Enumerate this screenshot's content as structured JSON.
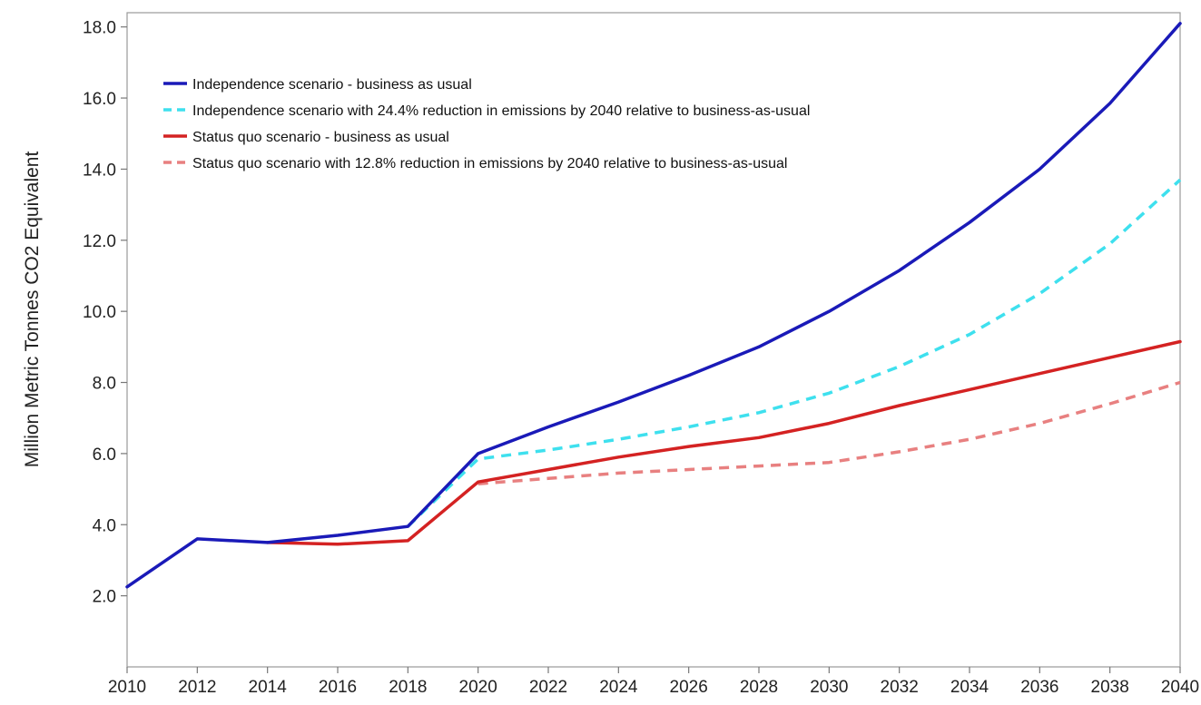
{
  "chart_data": {
    "type": "line",
    "title": "",
    "xlabel": "",
    "ylabel": "Million Metric Tonnes CO2 Equivalent",
    "xlim": [
      2010,
      2040
    ],
    "ylim": [
      0,
      18.4
    ],
    "x_ticks": [
      "2010",
      "2012",
      "2014",
      "2016",
      "2018",
      "2020",
      "2022",
      "2024",
      "2026",
      "2028",
      "2030",
      "2032",
      "2034",
      "2036",
      "2038",
      "2040"
    ],
    "y_ticks": [
      "2.0",
      "4.0",
      "6.0",
      "8.0",
      "10.0",
      "12.0",
      "14.0",
      "16.0",
      "18.0"
    ],
    "grid": false,
    "legend_position": "top-left",
    "series": [
      {
        "name": "Independence scenario - business as usual",
        "color": "#1a1ab8",
        "dashed": false,
        "x": [
          2010,
          2012,
          2014,
          2016,
          2018,
          2020,
          2022,
          2024,
          2026,
          2028,
          2030,
          2032,
          2034,
          2036,
          2038,
          2040
        ],
        "y": [
          2.25,
          3.6,
          3.5,
          3.7,
          3.95,
          6.0,
          6.75,
          7.45,
          8.2,
          9.0,
          10.0,
          11.15,
          12.5,
          14.0,
          15.85,
          18.1
        ]
      },
      {
        "name": "Independence scenario with 24.4% reduction in emissions by 2040 relative to business-as-usual",
        "color": "#3ee0ee",
        "dashed": true,
        "x": [
          2018,
          2020,
          2022,
          2024,
          2026,
          2028,
          2030,
          2032,
          2034,
          2036,
          2038,
          2040
        ],
        "y": [
          3.95,
          5.85,
          6.1,
          6.4,
          6.75,
          7.15,
          7.7,
          8.45,
          9.35,
          10.5,
          11.9,
          13.7
        ]
      },
      {
        "name": "Status quo scenario - business as usual",
        "color": "#d42222",
        "dashed": false,
        "x": [
          2014,
          2016,
          2018,
          2020,
          2022,
          2024,
          2026,
          2028,
          2030,
          2032,
          2034,
          2036,
          2038,
          2040
        ],
        "y": [
          3.5,
          3.45,
          3.55,
          5.2,
          5.55,
          5.9,
          6.2,
          6.45,
          6.85,
          7.35,
          7.8,
          8.25,
          8.7,
          9.15
        ]
      },
      {
        "name": "Status quo scenario with 12.8% reduction in emissions by 2040 relative to business-as-usual",
        "color": "#e88080",
        "dashed": true,
        "x": [
          2020,
          2022,
          2024,
          2026,
          2028,
          2030,
          2032,
          2034,
          2036,
          2038,
          2040
        ],
        "y": [
          5.15,
          5.3,
          5.45,
          5.55,
          5.65,
          5.75,
          6.05,
          6.4,
          6.85,
          7.4,
          8.0
        ]
      }
    ]
  }
}
